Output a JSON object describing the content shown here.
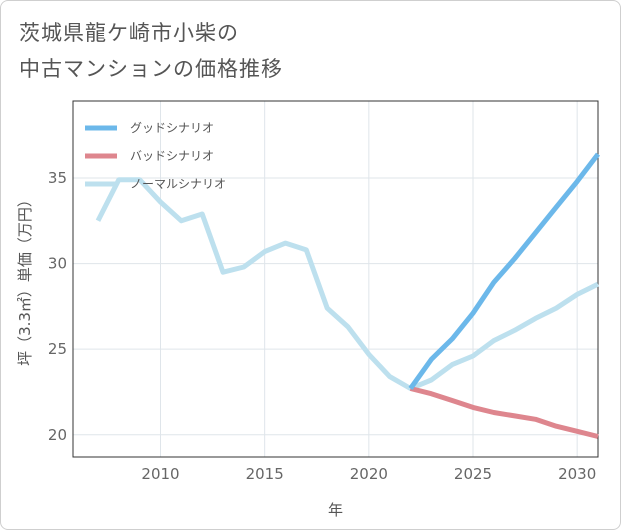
{
  "title_line1": "茨城県龍ケ崎市小柴の",
  "title_line2": "中古マンションの価格推移",
  "chart_data": {
    "type": "line",
    "title": "茨城県龍ケ崎市小柴の中古マンションの価格推移",
    "xlabel": "年",
    "ylabel": "坪（3.3㎡）単価（万円）",
    "xlim": [
      2005.8,
      2031
    ],
    "ylim": [
      18.7,
      39.5
    ],
    "xticks": [
      2010,
      2015,
      2020,
      2025,
      2030
    ],
    "yticks": [
      20,
      25,
      30,
      35
    ],
    "grid": true,
    "legend_position": "top-left",
    "series": [
      {
        "name": "グッドシナリオ",
        "color": "#6cb8ea",
        "x": [
          2022,
          2023,
          2024,
          2025,
          2026,
          2027,
          2028,
          2029,
          2030,
          2031
        ],
        "y": [
          22.7,
          24.4,
          25.6,
          27.1,
          28.9,
          30.3,
          31.8,
          33.3,
          34.8,
          36.4
        ]
      },
      {
        "name": "バッドシナリオ",
        "color": "#de868e",
        "x": [
          2022,
          2023,
          2024,
          2025,
          2026,
          2027,
          2028,
          2029,
          2030,
          2031
        ],
        "y": [
          22.7,
          22.4,
          22.0,
          21.6,
          21.3,
          21.1,
          20.9,
          20.5,
          20.2,
          19.9
        ]
      },
      {
        "name": "ノーマルシナリオ",
        "color": "#bde0ee",
        "x": [
          2007,
          2008,
          2009,
          2010,
          2011,
          2012,
          2013,
          2014,
          2015,
          2016,
          2017,
          2018,
          2019,
          2020,
          2021,
          2022,
          2023,
          2024,
          2025,
          2026,
          2027,
          2028,
          2029,
          2030,
          2031
        ],
        "y": [
          32.5,
          34.9,
          34.9,
          33.6,
          32.5,
          32.9,
          29.5,
          29.8,
          30.7,
          31.2,
          30.8,
          27.4,
          26.3,
          24.7,
          23.4,
          22.7,
          23.2,
          24.1,
          24.6,
          25.5,
          26.1,
          26.8,
          27.4,
          28.2,
          28.8
        ]
      }
    ]
  }
}
